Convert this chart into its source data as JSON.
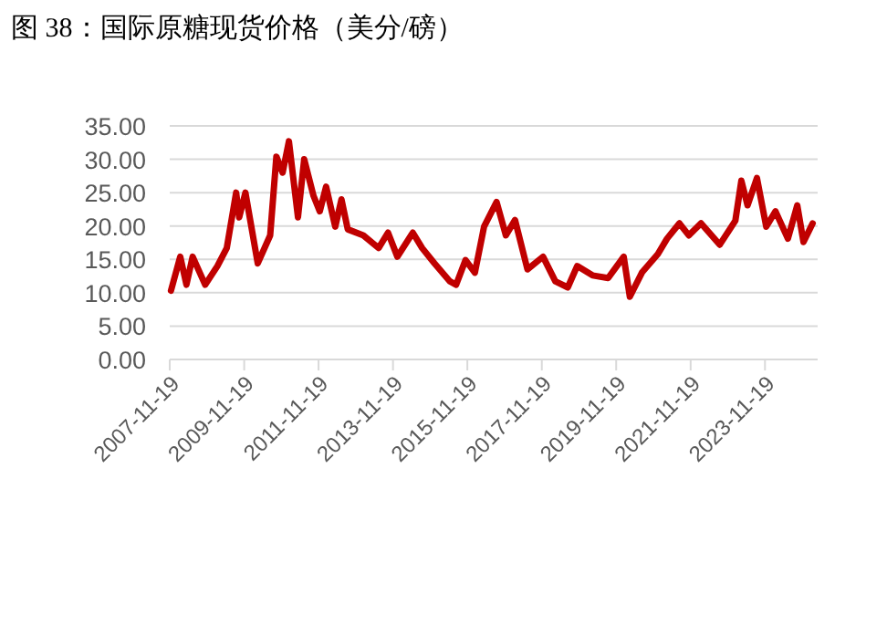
{
  "chart_data": {
    "type": "line",
    "title": "图 38：国际原糖现货价格（美分/磅）",
    "x": [
      "2007-12",
      "2008-03",
      "2008-05",
      "2008-07",
      "2008-11",
      "2009-03",
      "2009-06",
      "2009-09",
      "2009-10",
      "2009-12",
      "2010-04",
      "2010-08",
      "2010-10",
      "2010-12",
      "2011-02",
      "2011-05",
      "2011-07",
      "2011-10",
      "2011-12",
      "2012-02",
      "2012-05",
      "2012-07",
      "2012-09",
      "2013-02",
      "2013-07",
      "2013-10",
      "2014-01",
      "2014-06",
      "2014-09",
      "2015-01",
      "2015-06",
      "2015-08",
      "2015-11",
      "2016-02",
      "2016-05",
      "2016-09",
      "2016-12",
      "2017-03",
      "2017-07",
      "2017-12",
      "2018-04",
      "2018-08",
      "2018-11",
      "2019-04",
      "2019-09",
      "2020-02",
      "2020-04",
      "2020-08",
      "2021-01",
      "2021-04",
      "2021-08",
      "2021-11",
      "2022-03",
      "2022-09",
      "2023-02",
      "2023-04",
      "2023-06",
      "2023-09",
      "2023-12",
      "2024-03",
      "2024-07",
      "2024-10",
      "2024-12",
      "2025-03"
    ],
    "series": [
      {
        "color": "#c00000",
        "values": [
          10.3,
          15.4,
          11.2,
          15.4,
          11.2,
          14,
          16.7,
          25,
          21.3,
          25,
          14.4,
          18.6,
          30.4,
          28,
          32.7,
          21.3,
          30,
          24.5,
          22.2,
          25.9,
          19.9,
          24,
          19.5,
          18.6,
          16.7,
          19,
          15.4,
          19,
          16.7,
          14.4,
          11.7,
          11.2,
          14.9,
          13,
          19.9,
          23.6,
          18.6,
          20.9,
          13.5,
          15.4,
          11.7,
          10.8,
          14,
          12.6,
          12.2,
          15.4,
          9.4,
          13.1,
          15.8,
          18.1,
          20.4,
          18.6,
          20.4,
          17.2,
          20.8,
          26.8,
          23.1,
          27.2,
          19.9,
          22.2,
          18.1,
          23.1,
          17.6,
          20.4
        ]
      }
    ],
    "xlim": [
      "2007-11-19",
      "2025-04-19"
    ],
    "xticks": [
      "2007-11-19",
      "2009-11-19",
      "2011-11-19",
      "2013-11-19",
      "2015-11-19",
      "2017-11-19",
      "2019-11-19",
      "2021-11-19",
      "2023-11-19"
    ],
    "ylim": [
      0,
      35
    ],
    "yticks": [
      {
        "value": 0,
        "label": "0.00"
      },
      {
        "value": 5,
        "label": "5.00"
      },
      {
        "value": 10,
        "label": "10.00"
      },
      {
        "value": 15,
        "label": "15.00"
      },
      {
        "value": 20,
        "label": "20.00"
      },
      {
        "value": 25,
        "label": "25.00"
      },
      {
        "value": 30,
        "label": "30.00"
      },
      {
        "value": 35,
        "label": "35.00"
      }
    ],
    "grid": "y",
    "line_style": "solid"
  }
}
